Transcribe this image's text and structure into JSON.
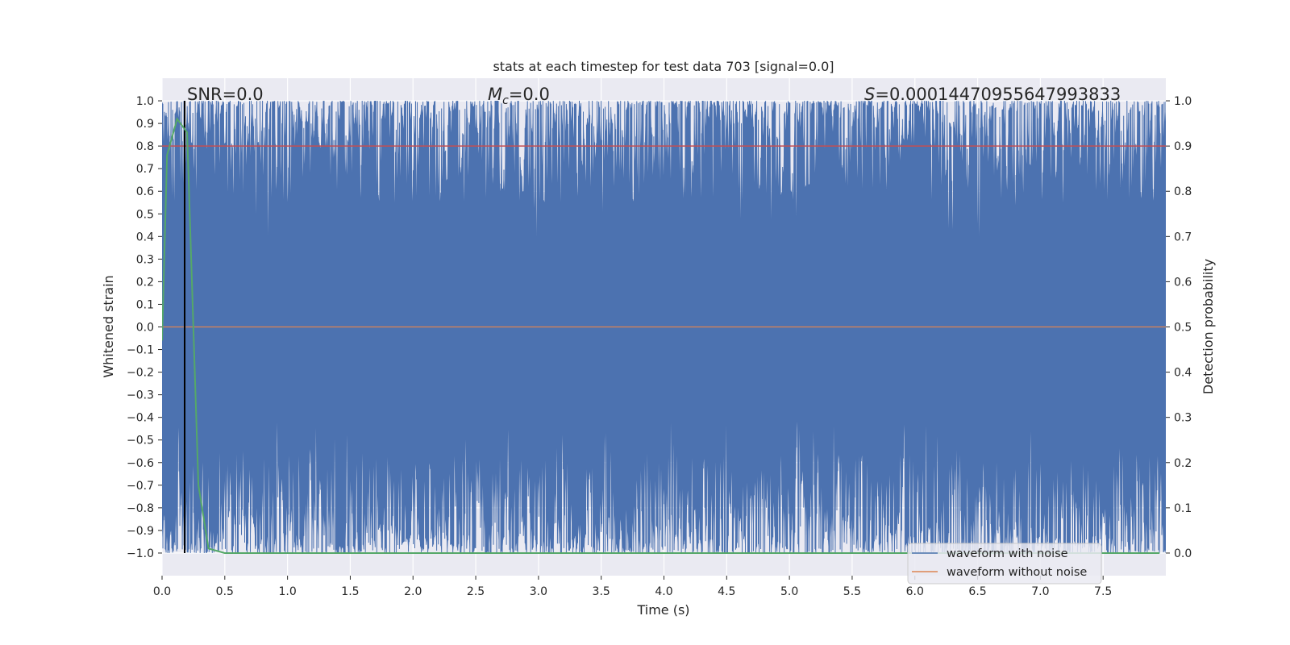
{
  "chart_data": {
    "type": "line",
    "title": "stats at each timestep for test data 703 [signal=0.0]",
    "xlabel": "Time (s)",
    "ylabel": "Whitened strain",
    "ylabel_right": "Detection probability",
    "xlim": [
      0.0,
      8.0
    ],
    "ylim": [
      -1.1,
      1.1
    ],
    "ylim_right": [
      -0.05,
      1.05
    ],
    "x_ticks": [
      0.0,
      0.5,
      1.0,
      1.5,
      2.0,
      2.5,
      3.0,
      3.5,
      4.0,
      4.5,
      5.0,
      5.5,
      6.0,
      6.5,
      7.0,
      7.5
    ],
    "x_tick_labels": [
      "0.0",
      "0.5",
      "1.0",
      "1.5",
      "2.0",
      "2.5",
      "3.0",
      "3.5",
      "4.0",
      "4.5",
      "5.0",
      "5.5",
      "6.0",
      "6.5",
      "7.0",
      "7.5"
    ],
    "y_ticks": [
      1.0,
      0.9,
      0.8,
      0.7,
      0.6,
      0.5,
      0.4,
      0.3,
      0.2,
      0.1,
      0.0,
      -0.1,
      -0.2,
      -0.3,
      -0.4,
      -0.5,
      -0.6,
      -0.7,
      -0.8,
      -0.9,
      -1.0
    ],
    "y_tick_labels": [
      "1.0",
      "0.9",
      "0.8",
      "0.7",
      "0.6",
      "0.5",
      "0.4",
      "0.3",
      "0.2",
      "0.1",
      "0.0",
      "−0.1",
      "−0.2",
      "−0.3",
      "−0.4",
      "−0.5",
      "−0.6",
      "−0.7",
      "−0.8",
      "−0.9",
      "−1.0"
    ],
    "y_right_ticks": [
      1.0,
      0.9,
      0.8,
      0.7,
      0.6,
      0.5,
      0.4,
      0.3,
      0.2,
      0.1,
      0.0
    ],
    "y_right_tick_labels": [
      "1.0",
      "0.9",
      "0.8",
      "0.7",
      "0.6",
      "0.5",
      "0.4",
      "0.3",
      "0.2",
      "0.1",
      "0.0"
    ],
    "annotations": {
      "snr": "SNR=0.0",
      "mc_symbol": "M",
      "mc_subscript": "c",
      "mc_value": "=0.0",
      "s_symbol": "S",
      "s_value": "=0.00014470955647993833"
    },
    "series": [
      {
        "name": "waveform with noise",
        "color": "#4c72b0",
        "kind": "dense noise in [-1, 1]",
        "duration_s": 8.0
      },
      {
        "name": "waveform without noise",
        "color": "#dd8452",
        "kind": "flat",
        "value": 0.0
      },
      {
        "name": "detection probability",
        "color": "#55a868",
        "axis": "right",
        "x": [
          0.0,
          0.04,
          0.12,
          0.2,
          0.29,
          0.37,
          0.5,
          1.0,
          2.0,
          3.0,
          4.0,
          5.0,
          6.0,
          7.0,
          7.95
        ],
        "y": [
          0.47,
          0.88,
          0.96,
          0.93,
          0.15,
          0.01,
          0.0,
          0.0,
          0.0,
          0.0,
          0.0,
          0.0,
          0.0,
          0.0,
          0.0
        ]
      }
    ],
    "threshold": {
      "axis": "right",
      "value": 0.9,
      "color": "#c44e52"
    },
    "event_marker": {
      "x": 0.18,
      "color": "#000000"
    },
    "legend": {
      "position": "lower-right",
      "entries": [
        "waveform with noise",
        "waveform without noise"
      ]
    },
    "colors": {
      "axes_bg": "#eaeaf2",
      "grid": "#ffffff",
      "text": "#262626"
    }
  }
}
